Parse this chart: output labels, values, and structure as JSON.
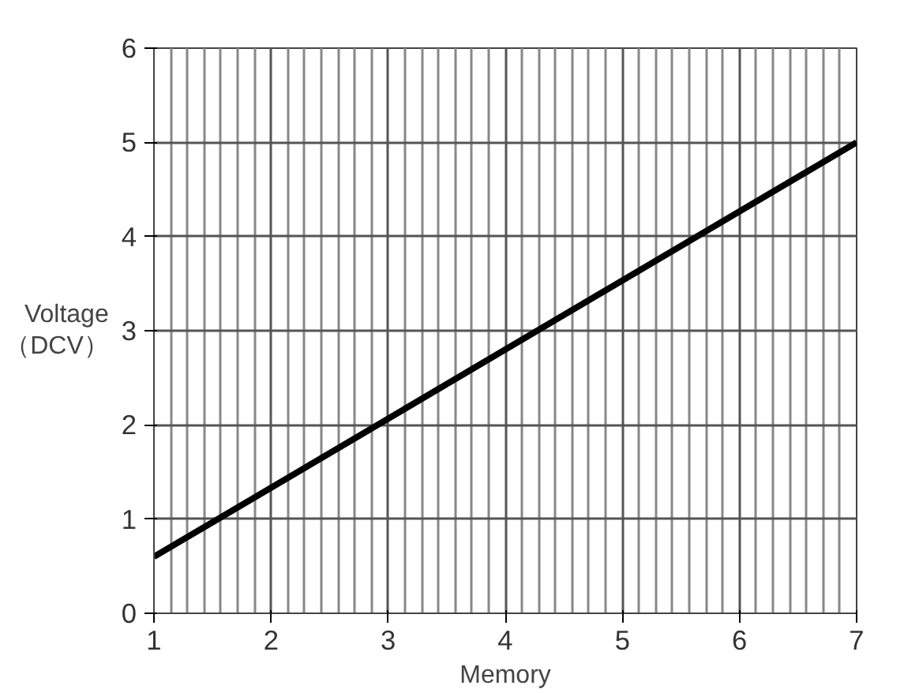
{
  "chart_data": {
    "type": "line",
    "xlabel": "Memory",
    "ylabel": "Voltage\n（DCV）",
    "x": [
      1,
      7
    ],
    "series": [
      {
        "color": "#000000",
        "values": [
          0.6,
          5
        ]
      }
    ],
    "xlim": [
      1,
      7
    ],
    "ylim": [
      0,
      6
    ],
    "xticks": [
      1,
      2,
      3,
      4,
      5,
      6,
      7
    ],
    "yticks": [
      0,
      1,
      2,
      3,
      4,
      5,
      6
    ],
    "grid": true,
    "marker": "none",
    "line_style": "solid"
  }
}
